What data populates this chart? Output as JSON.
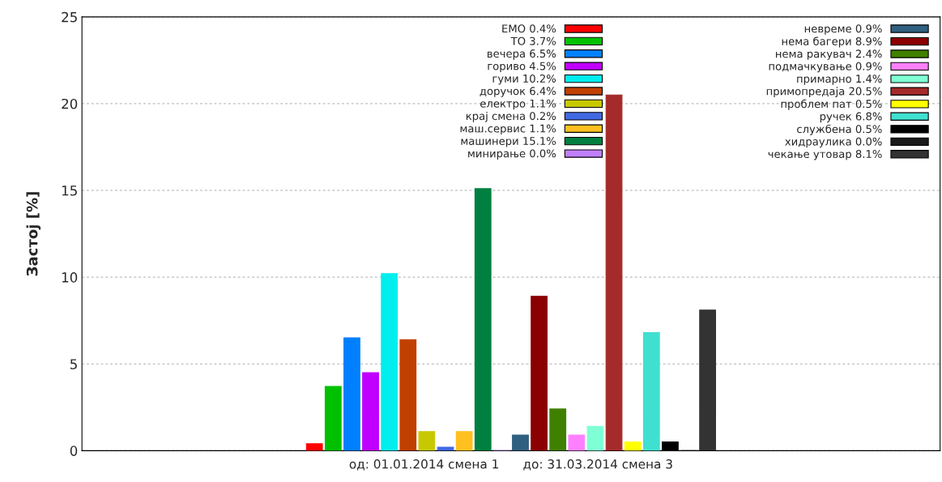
{
  "chart_data": {
    "type": "bar",
    "xlabel": "од: 01.01.2014 смена 1      до: 31.03.2014 смена 3",
    "ylabel": "Застој [%]",
    "categories": [
      null
    ],
    "ylim": [
      0,
      25
    ],
    "yticks": [
      0,
      5,
      10,
      15,
      20,
      25
    ],
    "grid": "y",
    "legend": "top right",
    "series": [
      {
        "name": "EMO 0.4%",
        "color": "#ff0000",
        "values": [
          0.4
        ]
      },
      {
        "name": "TO 3.7%",
        "color": "#00c000",
        "values": [
          3.7
        ]
      },
      {
        "name": "вечера 6.5%",
        "color": "#0080ff",
        "values": [
          6.5
        ]
      },
      {
        "name": "гориво 4.5%",
        "color": "#c000ff",
        "values": [
          4.5
        ]
      },
      {
        "name": "гуми 10.2%",
        "color": "#00eeee",
        "values": [
          10.2
        ]
      },
      {
        "name": "доручок 6.4%",
        "color": "#c04000",
        "values": [
          6.4
        ]
      },
      {
        "name": "електро 1.1%",
        "color": "#c8c800",
        "values": [
          1.1
        ]
      },
      {
        "name": "крај смена 0.2%",
        "color": "#4169e1",
        "values": [
          0.2
        ]
      },
      {
        "name": "маш.сервис 1.1%",
        "color": "#ffc020",
        "values": [
          1.1
        ]
      },
      {
        "name": "машинери 15.1%",
        "color": "#008040",
        "values": [
          15.1
        ]
      },
      {
        "name": "минирање 0.0%",
        "color": "#c080ff",
        "values": [
          0.0
        ]
      },
      {
        "name": "невреме 0.9%",
        "color": "#306080",
        "values": [
          0.9
        ]
      },
      {
        "name": "нема багери 8.9%",
        "color": "#8b0000",
        "values": [
          8.9
        ]
      },
      {
        "name": "нема ракувач 2.4%",
        "color": "#408000",
        "values": [
          2.4
        ]
      },
      {
        "name": "подмачкување 0.9%",
        "color": "#ff80ff",
        "values": [
          0.9
        ]
      },
      {
        "name": "примарно 1.4%",
        "color": "#7fffd4",
        "values": [
          1.4
        ]
      },
      {
        "name": "примопредаја 20.5%",
        "color": "#a52a2a",
        "values": [
          20.5
        ]
      },
      {
        "name": "проблем пат 0.5%",
        "color": "#ffff00",
        "values": [
          0.5
        ]
      },
      {
        "name": "ручек 6.8%",
        "color": "#40e0d0",
        "values": [
          6.8
        ]
      },
      {
        "name": "службена 0.5%",
        "color": "#000000",
        "values": [
          0.5
        ]
      },
      {
        "name": "хидраулика 0.0%",
        "color": "#1a1a1a",
        "values": [
          0.0
        ]
      },
      {
        "name": "чекање утовар 8.1%",
        "color": "#333333",
        "values": [
          8.1
        ]
      }
    ]
  }
}
